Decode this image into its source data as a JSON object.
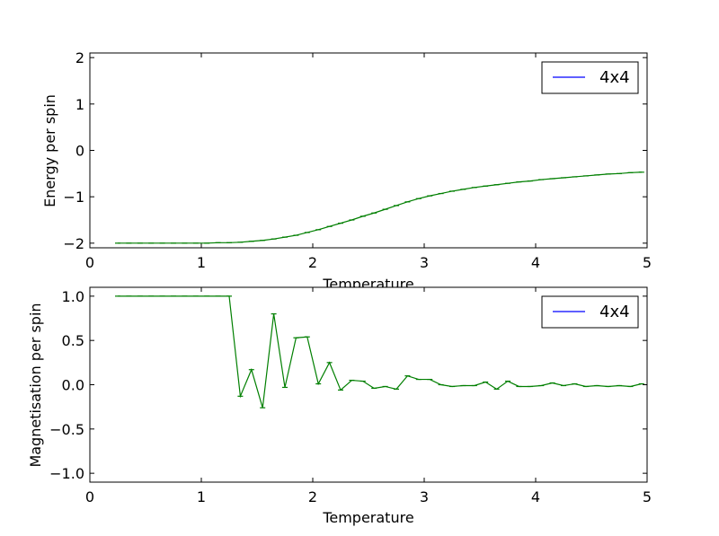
{
  "chart_data": [
    {
      "type": "line",
      "title": "",
      "xlabel": "Temperature",
      "ylabel": "Energy per spin",
      "xlim": [
        0,
        5
      ],
      "ylim": [
        -2.1,
        2.1
      ],
      "xticks": [
        "0",
        "1",
        "2",
        "3",
        "4",
        "5"
      ],
      "yticks": [
        "−2",
        "−1",
        "0",
        "1",
        "2"
      ],
      "grid": false,
      "legend_placement": "top-right",
      "series": [
        {
          "name": "4x4",
          "line_color": "#0000ff",
          "errorbar_color": "#007f00",
          "x": [
            0.25,
            0.35,
            0.45,
            0.55,
            0.65,
            0.75,
            0.85,
            0.95,
            1.05,
            1.15,
            1.25,
            1.35,
            1.45,
            1.55,
            1.65,
            1.75,
            1.85,
            1.95,
            2.05,
            2.15,
            2.25,
            2.35,
            2.45,
            2.55,
            2.65,
            2.75,
            2.85,
            2.95,
            3.05,
            3.15,
            3.25,
            3.35,
            3.45,
            3.55,
            3.65,
            3.75,
            3.85,
            3.95,
            4.05,
            4.15,
            4.25,
            4.35,
            4.45,
            4.55,
            4.65,
            4.75,
            4.85,
            4.95
          ],
          "y": [
            -2.0,
            -2.0,
            -2.0,
            -2.0,
            -2.0,
            -2.0,
            -2.0,
            -2.0,
            -2.0,
            -1.99,
            -1.99,
            -1.98,
            -1.96,
            -1.94,
            -1.91,
            -1.87,
            -1.83,
            -1.77,
            -1.71,
            -1.64,
            -1.57,
            -1.5,
            -1.42,
            -1.35,
            -1.27,
            -1.19,
            -1.11,
            -1.04,
            -0.98,
            -0.93,
            -0.88,
            -0.84,
            -0.8,
            -0.77,
            -0.74,
            -0.71,
            -0.68,
            -0.66,
            -0.63,
            -0.61,
            -0.59,
            -0.57,
            -0.55,
            -0.53,
            -0.51,
            -0.5,
            -0.48,
            -0.47
          ]
        }
      ]
    },
    {
      "type": "line",
      "title": "",
      "xlabel": "Temperature",
      "ylabel": "Magnetisation per spin",
      "xlim": [
        0,
        5
      ],
      "ylim": [
        -1.1,
        1.1
      ],
      "xticks": [
        "0",
        "1",
        "2",
        "3",
        "4",
        "5"
      ],
      "yticks": [
        "1.0",
        "0.5",
        "0.0",
        "−0.5",
        "−1.0"
      ],
      "grid": false,
      "legend_placement": "top-right",
      "series": [
        {
          "name": "4x4",
          "line_color": "#0000ff",
          "errorbar_color": "#007f00",
          "x": [
            0.25,
            0.35,
            0.45,
            0.55,
            0.65,
            0.75,
            0.85,
            0.95,
            1.05,
            1.15,
            1.25,
            1.35,
            1.45,
            1.55,
            1.65,
            1.75,
            1.85,
            1.95,
            2.05,
            2.15,
            2.25,
            2.35,
            2.45,
            2.55,
            2.65,
            2.75,
            2.85,
            2.95,
            3.05,
            3.15,
            3.25,
            3.35,
            3.45,
            3.55,
            3.65,
            3.75,
            3.85,
            3.95,
            4.05,
            4.15,
            4.25,
            4.35,
            4.45,
            4.55,
            4.65,
            4.75,
            4.85,
            4.95
          ],
          "y": [
            1.0,
            1.0,
            1.0,
            1.0,
            1.0,
            1.0,
            1.0,
            1.0,
            1.0,
            1.0,
            1.0,
            -0.13,
            0.17,
            -0.26,
            0.8,
            -0.03,
            0.53,
            0.54,
            0.01,
            0.25,
            -0.06,
            0.05,
            0.04,
            -0.04,
            -0.02,
            -0.05,
            0.1,
            0.06,
            0.06,
            0.0,
            -0.02,
            -0.01,
            -0.01,
            0.03,
            -0.05,
            0.04,
            -0.02,
            -0.02,
            -0.01,
            0.02,
            -0.01,
            0.01,
            -0.02,
            -0.01,
            -0.02,
            -0.01,
            -0.02,
            0.01
          ]
        }
      ]
    }
  ]
}
